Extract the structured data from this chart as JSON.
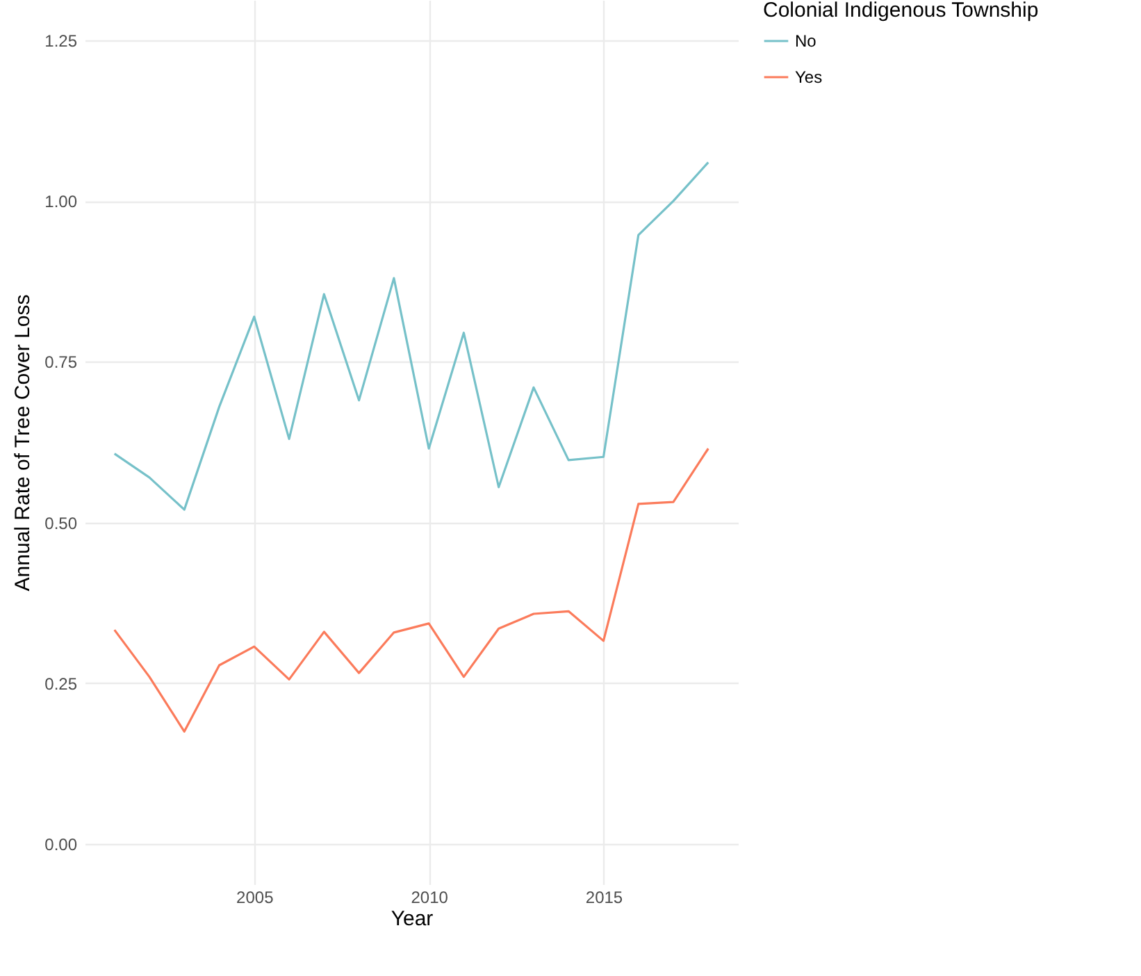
{
  "chart_data": {
    "type": "line",
    "xlabel": "Year",
    "ylabel": "Annual Rate of Tree Cover Loss",
    "legend_title": "Colonial Indigenous Township",
    "legend": "right",
    "grid": true,
    "x": [
      2001,
      2002,
      2003,
      2004,
      2005,
      2006,
      2007,
      2008,
      2009,
      2010,
      2011,
      2012,
      2013,
      2014,
      2015,
      2016,
      2017,
      2018
    ],
    "xlim": [
      2000.15,
      2018.85
    ],
    "xticks": [
      2005,
      2010,
      2015
    ],
    "ylim": [
      -0.0625,
      1.3125
    ],
    "yticks": [
      {
        "value": 0,
        "label": "0.00"
      },
      {
        "value": 0.25,
        "label": "0.25"
      },
      {
        "value": 0.5,
        "label": "0.50"
      },
      {
        "value": 0.75,
        "label": "0.75"
      },
      {
        "value": 1,
        "label": "1.00"
      },
      {
        "value": 1.25,
        "label": "1.25"
      }
    ],
    "series": [
      {
        "name": "No",
        "color": "#76c1c9",
        "values": [
          0.607,
          0.57,
          0.52,
          0.68,
          0.82,
          0.63,
          0.855,
          0.69,
          0.88,
          0.615,
          0.795,
          0.555,
          0.71,
          0.597,
          0.602,
          0.947,
          1.0,
          1.06
        ]
      },
      {
        "name": "Yes",
        "color": "#fb7b5b",
        "values": [
          0.333,
          0.26,
          0.175,
          0.278,
          0.307,
          0.256,
          0.33,
          0.266,
          0.329,
          0.343,
          0.26,
          0.335,
          0.358,
          0.362,
          0.316,
          0.529,
          0.532,
          0.615
        ]
      }
    ]
  }
}
